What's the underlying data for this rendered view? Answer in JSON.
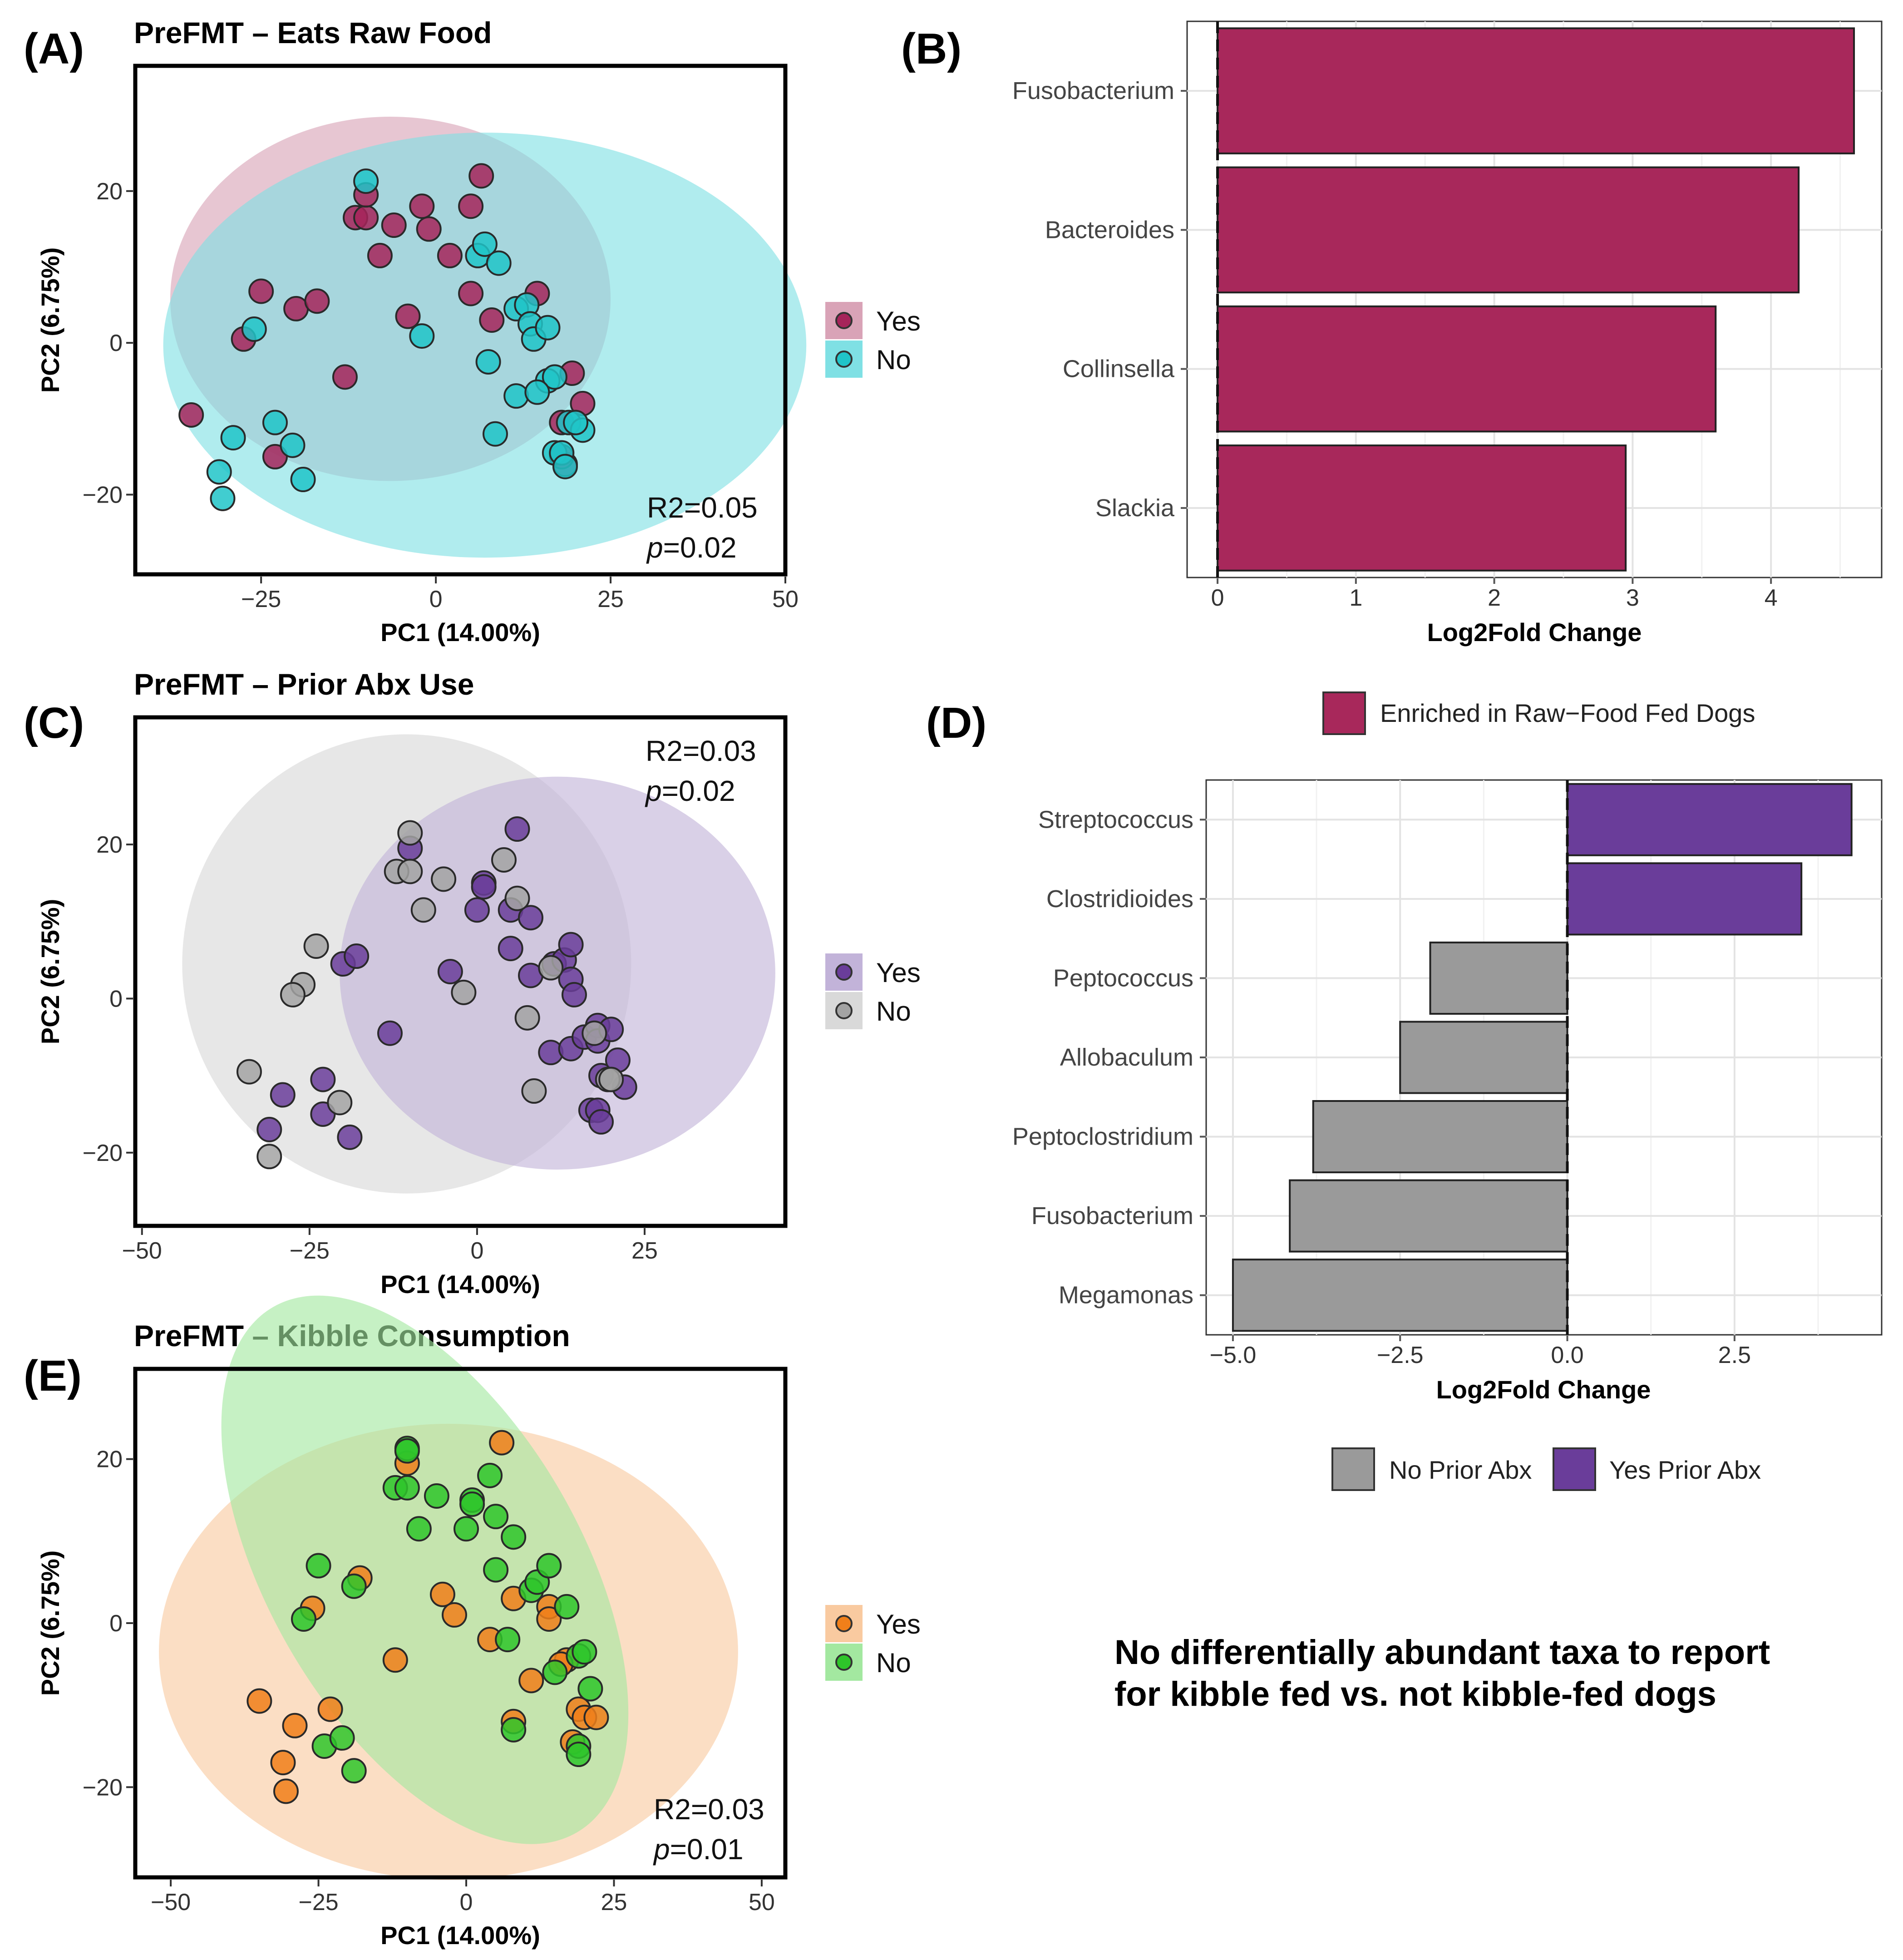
{
  "chart_data": [
    {
      "panel": "(A)",
      "type": "scatter",
      "title": "PreFMT – Eats Raw Food",
      "xlabel": "PC1 (14.00%)",
      "ylabel": "PC2 (6.75%)",
      "xlim": [
        -43,
        50
      ],
      "ylim": [
        -30.5,
        36.5
      ],
      "xticks": [
        -25,
        0,
        25,
        50
      ],
      "yticks": [
        -20,
        0,
        20
      ],
      "stat_r2": "R2=0.05",
      "stat_p_label": "p",
      "stat_p_value": "=0.02",
      "stat_position": "bottom-right",
      "legend": [
        {
          "label": "Yes",
          "color": "#a6245a",
          "ellipse": "#d9a3b7"
        },
        {
          "label": "No",
          "color": "#20c4c8",
          "ellipse": "#7fe0e4"
        }
      ],
      "ellipses": [
        {
          "group": "Yes",
          "cx": -6.5,
          "cy": 5.8,
          "rx": 31.5,
          "ry": 24
        },
        {
          "group": "No",
          "cx": 7,
          "cy": -0.3,
          "rx": 46,
          "ry": 28
        }
      ],
      "points": {
        "Yes": [
          [
            -35,
            -9.5
          ],
          [
            -25,
            6.8
          ],
          [
            -20,
            4.5
          ],
          [
            -17,
            5.5
          ],
          [
            -11.5,
            16.5
          ],
          [
            -10,
            16.5
          ],
          [
            -10,
            19.5
          ],
          [
            -6,
            15.5
          ],
          [
            -2,
            18
          ],
          [
            -1,
            15
          ],
          [
            2,
            11.5
          ],
          [
            5,
            18
          ],
          [
            6.5,
            22
          ],
          [
            5,
            6.5
          ],
          [
            8,
            3
          ],
          [
            -4,
            3.5
          ],
          [
            -8,
            11.5
          ],
          [
            -13,
            -4.5
          ],
          [
            -23,
            -15
          ],
          [
            14.5,
            6.5
          ],
          [
            18.5,
            -16
          ],
          [
            18,
            -15
          ],
          [
            18,
            -10.5
          ],
          [
            19.5,
            -4
          ],
          [
            21,
            -8
          ],
          [
            -27.5,
            0.5
          ]
        ],
        "No": [
          [
            -10,
            21.3
          ],
          [
            -31,
            -17
          ],
          [
            -30.5,
            -20.5
          ],
          [
            -29,
            -12.5
          ],
          [
            -26,
            1.8
          ],
          [
            -23,
            -10.5
          ],
          [
            -20.5,
            -13.5
          ],
          [
            -19,
            -18
          ],
          [
            -2,
            0.9
          ],
          [
            6,
            11.5
          ],
          [
            7,
            13
          ],
          [
            9,
            10.5
          ],
          [
            7.5,
            -2.5
          ],
          [
            8.5,
            -12
          ],
          [
            11.5,
            4.5
          ],
          [
            13,
            5
          ],
          [
            13.5,
            2.5
          ],
          [
            14,
            0.5
          ],
          [
            16,
            2
          ],
          [
            16,
            -5
          ],
          [
            17,
            -4.5
          ],
          [
            19,
            -10.5
          ],
          [
            11.5,
            -7
          ],
          [
            14.5,
            -6.5
          ],
          [
            17,
            -14.5
          ],
          [
            18,
            -14.5
          ],
          [
            18.5,
            -16.3
          ],
          [
            21,
            -11.5
          ],
          [
            20,
            -10.5
          ]
        ]
      }
    },
    {
      "panel": "(B)",
      "type": "bar",
      "orientation": "horizontal",
      "categories": [
        "Fusobacterium",
        "Bacteroides",
        "Collinsella",
        "Slackia"
      ],
      "values": [
        4.6,
        4.2,
        3.6,
        2.95
      ],
      "xlabel": "Log2Fold Change",
      "xlim": [
        -0.22,
        4.8
      ],
      "xticks": [
        0,
        1,
        2,
        3,
        4
      ],
      "bar_color": "#a8285b",
      "legend": [
        {
          "label": "Enriched in Raw−Food Fed Dogs",
          "color": "#a8285b"
        }
      ]
    },
    {
      "panel": "(C)",
      "type": "scatter",
      "title": "PreFMT – Prior Abx Use",
      "xlabel": "PC1 (14.00%)",
      "ylabel": "PC2 (6.75%)",
      "xlim": [
        -51,
        46
      ],
      "ylim": [
        -29.5,
        36.5
      ],
      "xticks": [
        -50,
        -25,
        0,
        25
      ],
      "yticks": [
        -20,
        0,
        20
      ],
      "stat_r2": "R2=0.03",
      "stat_p_label": "p",
      "stat_p_value": "=0.02",
      "stat_position": "top-right",
      "legend": [
        {
          "label": "Yes",
          "color": "#6a3d9a",
          "ellipse": "#c2b3d9"
        },
        {
          "label": "No",
          "color": "#a3a3a3",
          "ellipse": "#d9d9d9"
        }
      ],
      "ellipses": [
        {
          "group": "No",
          "cx": -10.5,
          "cy": 4.5,
          "rx": 33.5,
          "ry": 29.8
        },
        {
          "group": "Yes",
          "cx": 12,
          "cy": 3.3,
          "rx": 32.5,
          "ry": 25.5
        }
      ],
      "points": {
        "Yes": [
          [
            -10,
            19.5
          ],
          [
            -31,
            -17
          ],
          [
            -29,
            -12.5
          ],
          [
            -23,
            -10.5
          ],
          [
            -23,
            -15
          ],
          [
            -19,
            -18
          ],
          [
            -20,
            4.5
          ],
          [
            -18,
            5.5
          ],
          [
            -13,
            -4.5
          ],
          [
            -4,
            3.5
          ],
          [
            0,
            11.5
          ],
          [
            1,
            15
          ],
          [
            1,
            14.5
          ],
          [
            5,
            11.5
          ],
          [
            5,
            6.5
          ],
          [
            6,
            22
          ],
          [
            8,
            10.5
          ],
          [
            8,
            3
          ],
          [
            11,
            -7
          ],
          [
            11.5,
            4.5
          ],
          [
            13,
            5
          ],
          [
            14,
            7
          ],
          [
            14,
            2.5
          ],
          [
            14.5,
            0.5
          ],
          [
            14,
            -6.5
          ],
          [
            16,
            -5
          ],
          [
            18,
            -3.5
          ],
          [
            18,
            -5.5
          ],
          [
            18.5,
            -10
          ],
          [
            20,
            -4
          ],
          [
            21,
            -8
          ],
          [
            22,
            -11.5
          ],
          [
            17,
            -14.5
          ],
          [
            18,
            -14.5
          ],
          [
            18.5,
            -16
          ]
        ],
        "No": [
          [
            -10,
            21.5
          ],
          [
            -12,
            16.5
          ],
          [
            -10,
            16.5
          ],
          [
            -5,
            15.5
          ],
          [
            -8,
            11.5
          ],
          [
            4,
            18
          ],
          [
            6,
            13
          ],
          [
            -24,
            6.8
          ],
          [
            -26,
            1.8
          ],
          [
            -27.5,
            0.5
          ],
          [
            -34,
            -9.5
          ],
          [
            -31,
            -20.5
          ],
          [
            -20.5,
            -13.5
          ],
          [
            -2,
            0.8
          ],
          [
            7.5,
            -2.5
          ],
          [
            8.5,
            -12
          ],
          [
            11,
            4
          ],
          [
            19.5,
            -10.5
          ],
          [
            20,
            -10.5
          ],
          [
            17.5,
            -4.5
          ]
        ]
      }
    },
    {
      "panel": "(D)",
      "type": "bar",
      "orientation": "horizontal",
      "categories": [
        "Streptococcus",
        "Clostridioides",
        "Peptococcus",
        "Allobaculum",
        "Peptoclostridium",
        "Fusobacterium",
        "Megamonas"
      ],
      "values": [
        4.25,
        3.5,
        -2.05,
        -2.5,
        -3.8,
        -4.15,
        -5.0
      ],
      "xlabel": "Log2Fold Change",
      "xlim": [
        -5.4,
        4.7
      ],
      "xticks": [
        -5.0,
        -2.5,
        0.0,
        2.5
      ],
      "xtick_labels": [
        "−5.0",
        "−2.5",
        "0.0",
        "2.5"
      ],
      "legend": [
        {
          "label": "No Prior Abx",
          "color": "#9a9a9a"
        },
        {
          "label": "Yes Prior Abx",
          "color": "#6a3d9a"
        }
      ]
    },
    {
      "panel": "(E)",
      "type": "scatter",
      "title": "PreFMT – Kibble Consumption",
      "xlabel": "PC1 (14.00%)",
      "ylabel": "PC2 (6.75%)",
      "xlim": [
        -56,
        54
      ],
      "ylim": [
        -31,
        31
      ],
      "xticks": [
        -50,
        -25,
        0,
        25,
        50
      ],
      "yticks": [
        -20,
        0,
        20
      ],
      "stat_r2": "R2=0.03",
      "stat_p_label": "p",
      "stat_p_value": "=0.01",
      "stat_position": "bottom-right",
      "legend": [
        {
          "label": "Yes",
          "color": "#f07f1a",
          "ellipse": "#f9caa0"
        },
        {
          "label": "No",
          "color": "#2ec52a",
          "ellipse": "#a3e8a0"
        }
      ],
      "ellipses": [
        {
          "group": "Yes",
          "cx": -3,
          "cy": -3.5,
          "rx": 49,
          "ry": 27.8
        },
        {
          "group": "No",
          "cx": -7,
          "cy": 6.5,
          "rx": 26.5,
          "ry": 37,
          "rotate": -30
        }
      ],
      "points": {
        "Yes": [
          [
            -10,
            19.5
          ],
          [
            -35,
            -9.5
          ],
          [
            -31,
            -17
          ],
          [
            -30.5,
            -20.5
          ],
          [
            -29,
            -12.5
          ],
          [
            -23,
            -10.5
          ],
          [
            -26,
            1.8
          ],
          [
            -18,
            5.5
          ],
          [
            -12,
            -4.5
          ],
          [
            -4,
            3.5
          ],
          [
            -2,
            1
          ],
          [
            4,
            -2
          ],
          [
            6,
            22
          ],
          [
            8,
            3
          ],
          [
            8,
            -12
          ],
          [
            11,
            -7
          ],
          [
            14,
            2
          ],
          [
            14,
            0.5
          ],
          [
            17,
            -4.5
          ],
          [
            16,
            -5
          ],
          [
            18,
            -14.5
          ],
          [
            19,
            -10.5
          ],
          [
            20,
            -11.5
          ],
          [
            22,
            -11.5
          ]
        ],
        "No": [
          [
            -10,
            21.3
          ],
          [
            -10,
            21
          ],
          [
            -12,
            16.5
          ],
          [
            -10,
            16.5
          ],
          [
            -5,
            15.5
          ],
          [
            -8,
            11.5
          ],
          [
            0,
            11.5
          ],
          [
            1,
            15
          ],
          [
            1,
            14.5
          ],
          [
            4,
            18
          ],
          [
            5,
            13
          ],
          [
            5,
            6.5
          ],
          [
            8,
            10.5
          ],
          [
            7,
            -2
          ],
          [
            11,
            4
          ],
          [
            12,
            5
          ],
          [
            14,
            7
          ],
          [
            15,
            -6
          ],
          [
            17,
            2
          ],
          [
            19,
            -4
          ],
          [
            21,
            -8
          ],
          [
            20,
            -3.5
          ],
          [
            19,
            -15
          ],
          [
            19,
            -16
          ],
          [
            -25,
            7
          ],
          [
            -27.5,
            0.5
          ],
          [
            -24,
            -15
          ],
          [
            -21,
            -14
          ],
          [
            -19,
            -18
          ],
          [
            -19,
            4.5
          ],
          [
            8,
            -13
          ]
        ]
      }
    }
  ],
  "note": {
    "line1": "No differentially abundant taxa to report",
    "line2": "for kibble fed vs. not kibble-fed dogs"
  }
}
